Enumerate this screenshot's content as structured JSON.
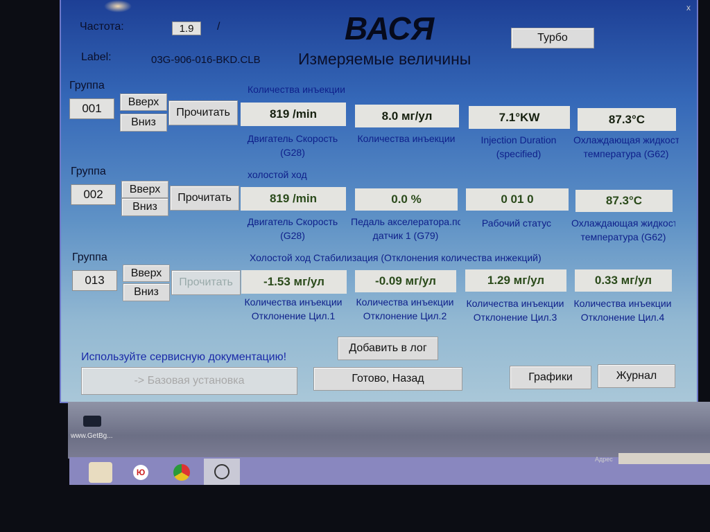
{
  "header": {
    "title": "ВАСЯ",
    "close": "x",
    "freq_label": "Частота:",
    "freq_value": "1.9",
    "freq_sep": "/",
    "turbo": "Турбо",
    "label_caption": "Label:",
    "label_file": "03G-906-016-BKD.CLB",
    "section_title": "Измеряемые величины"
  },
  "groups": [
    {
      "caption": "Группа",
      "number": "001",
      "up": "Вверх",
      "down": "Вниз",
      "read": "Прочитать",
      "title": "Количества инъекции",
      "fields": [
        {
          "value": "819 /min",
          "label1": "Двигатель Скорость",
          "label2": "(G28)"
        },
        {
          "value": "8.0 мг/ул",
          "label1": "Количества инъекции",
          "label2": ""
        },
        {
          "value": "7.1°KW",
          "label1": "Injection Duration",
          "label2": "(specified)"
        },
        {
          "value": "87.3°C",
          "label1": "Охлаждающая жидкость",
          "label2": "температура (G62)"
        }
      ]
    },
    {
      "caption": "Группа",
      "number": "002",
      "up": "Вверх",
      "down": "Вниз",
      "read": "Прочитать",
      "title": "холостой ход",
      "fields": [
        {
          "value": "819 /min",
          "label1": "Двигатель Скорость",
          "label2": "(G28)"
        },
        {
          "value": "0.0 %",
          "label1": "Педаль акселератора.положение",
          "label2": "датчик 1 (G79)"
        },
        {
          "value": "0 01  0",
          "label1": "Рабочий статус",
          "label2": ""
        },
        {
          "value": "87.3°C",
          "label1": "Охлаждающая жидкость",
          "label2": "температура (G62)"
        }
      ]
    },
    {
      "caption": "Группа",
      "number": "013",
      "up": "Вверх",
      "down": "Вниз",
      "read": "Прочитать",
      "title": "Холостой ход Стабилизация (Отклонения количества инжекций)",
      "fields": [
        {
          "value": "-1.53 мг/ул",
          "label1": "Количества инъекции",
          "label2": "Отклонение Цил.1"
        },
        {
          "value": "-0.09 мг/ул",
          "label1": "Количества инъекции",
          "label2": "Отклонение Цил.2"
        },
        {
          "value": "1.29 мг/ул",
          "label1": "Количества инъекции",
          "label2": "Отклонение Цил.3"
        },
        {
          "value": "0.33 мг/ул",
          "label1": "Количества инъекции",
          "label2": "Отклонение Цил.4"
        }
      ]
    }
  ],
  "footer": {
    "notice": "Используйте сервисную документацию!",
    "add_log": "Добавить в лог",
    "basic_setting": "-> Базовая установка",
    "done_back": "Готово, Назад",
    "graphs": "Графики",
    "journal": "Журнал"
  },
  "desktop": {
    "icon_label": "www.GetBg..."
  },
  "taskbar": {
    "items": [
      "file-manager-icon",
      "yandex-icon",
      "chrome-icon",
      "vasya-app-icon"
    ],
    "yandex_glyph": "Ю",
    "address_label": "Адрес"
  }
}
